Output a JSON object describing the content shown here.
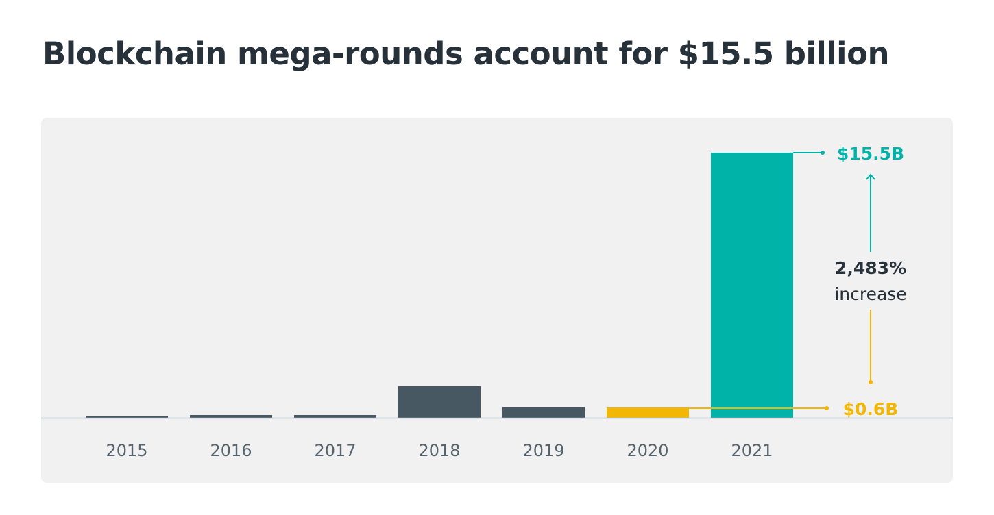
{
  "title": "Blockchain mega-rounds account for $15.5 billion",
  "colors": {
    "default_bar": "#475863",
    "highlight_start": "#f2b705",
    "highlight_end": "#00b3a9",
    "axis": "#a9b5bc",
    "tick_text": "#55646c",
    "annotation_text": "#27313a"
  },
  "chart_data": {
    "type": "bar",
    "title": "Blockchain mega-rounds account for $15.5 billion",
    "xlabel": "",
    "ylabel": "",
    "unit": "$B",
    "categories": [
      "2015",
      "2016",
      "2017",
      "2018",
      "2019",
      "2020",
      "2021"
    ],
    "values": [
      0.06,
      0.16,
      0.16,
      1.85,
      0.62,
      0.6,
      15.5
    ],
    "ylim": [
      0,
      15.5
    ],
    "grid": false,
    "legend": "none",
    "highlights": {
      "2020": "highlight_start",
      "2021": "highlight_end"
    },
    "annotations": {
      "end_label": "$15.5B",
      "start_label": "$0.6B",
      "change_value": "2,483%",
      "change_text": "increase"
    }
  }
}
